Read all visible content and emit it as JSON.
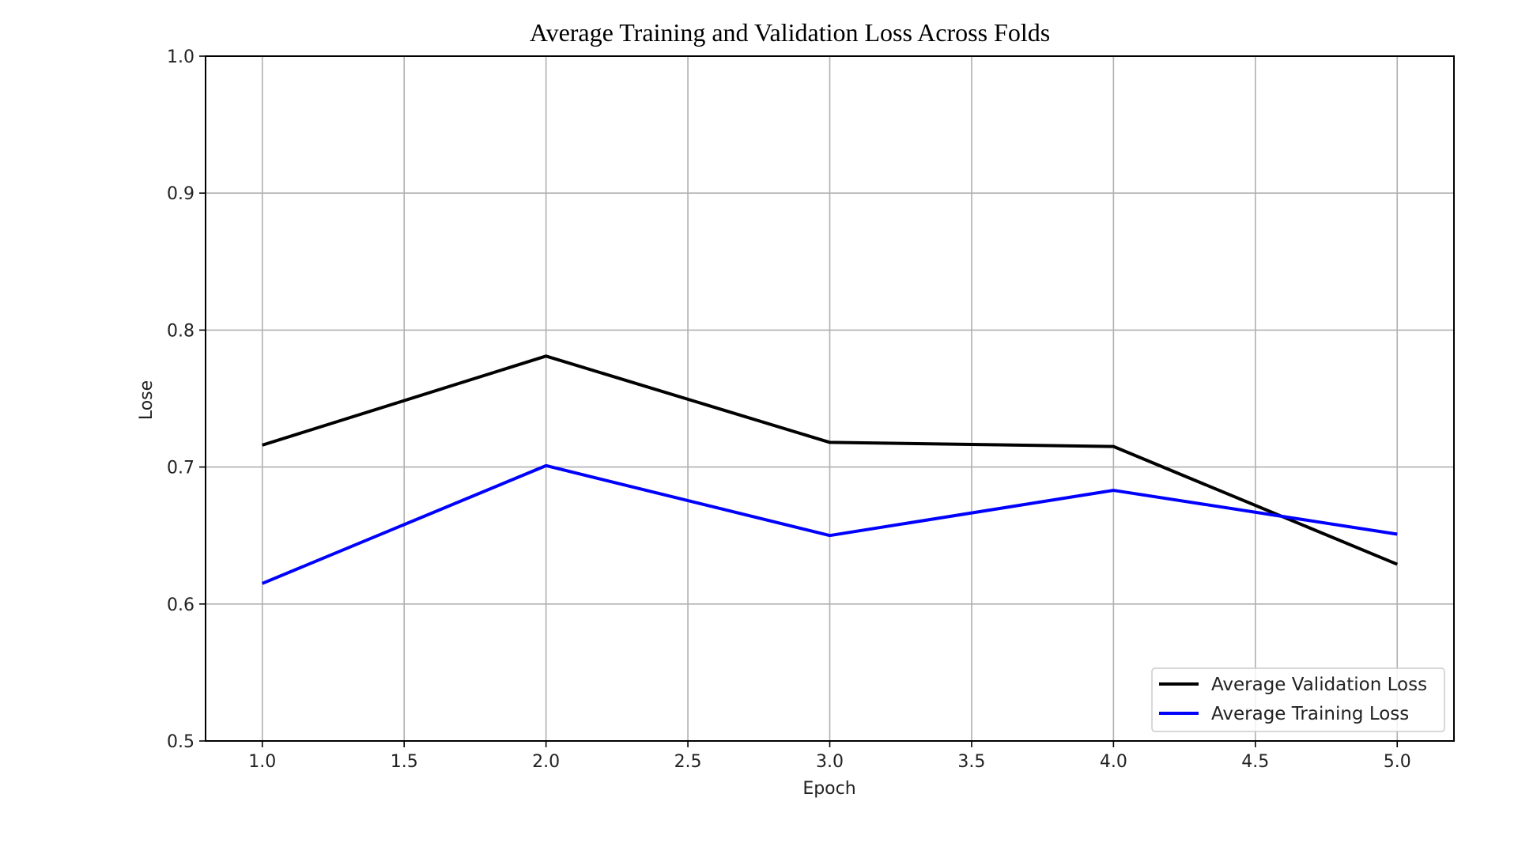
{
  "chart_data": {
    "type": "line",
    "title": "Average Training and Validation Loss Across Folds",
    "xlabel": "Epoch",
    "ylabel": "Lose",
    "x": [
      1,
      2,
      3,
      4,
      5
    ],
    "xlim": [
      0.8,
      5.2
    ],
    "ylim": [
      0.5,
      1.0
    ],
    "x_ticks": [
      "1.0",
      "1.5",
      "2.0",
      "2.5",
      "3.0",
      "3.5",
      "4.0",
      "4.5",
      "5.0"
    ],
    "y_ticks": [
      "0.5",
      "0.6",
      "0.7",
      "0.8",
      "0.9",
      "1.0"
    ],
    "grid": true,
    "legend_position": "lower-right",
    "series": [
      {
        "name": "Average Validation Loss",
        "color": "#000000",
        "values": [
          0.716,
          0.781,
          0.718,
          0.715,
          0.629
        ]
      },
      {
        "name": "Average Training Loss",
        "color": "#0000ff",
        "values": [
          0.615,
          0.701,
          0.65,
          0.683,
          0.651
        ]
      }
    ]
  }
}
